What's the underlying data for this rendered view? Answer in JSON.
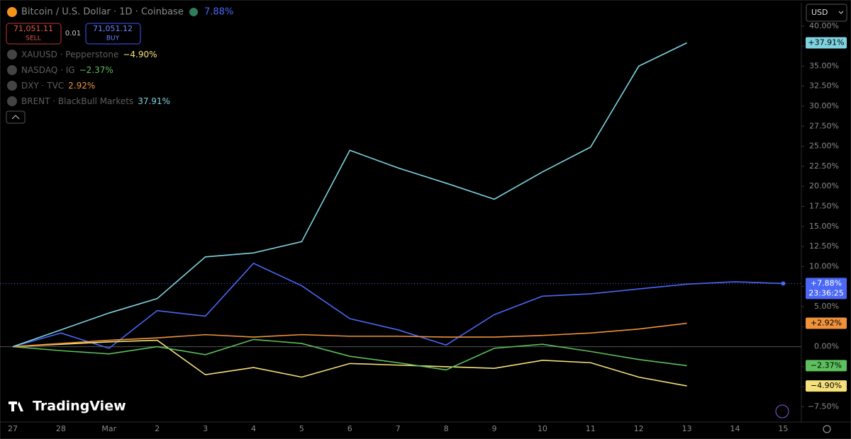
{
  "chart_data": {
    "type": "line",
    "sell_price": "71,051.11",
    "sell_label": "SELL",
    "spread": "0.01",
    "buy_price": "71,051.12",
    "buy_label": "BUY",
    "currency": "USD",
    "brand": "TradingView",
    "countdown": "23:36:25",
    "categories": [
      "27",
      "28",
      "Mar",
      "2",
      "3",
      "4",
      "5",
      "6",
      "7",
      "8",
      "9",
      "10",
      "11",
      "12",
      "13",
      "14",
      "15"
    ],
    "series": [
      {
        "name": "Bitcoin / U.S. Dollar · 1D · Coinbase",
        "color": "#4a67f5",
        "legend_change": "7.88%",
        "axis_badge": "+7.88%",
        "values": [
          0,
          1.7,
          -0.2,
          4.5,
          3.8,
          10.4,
          7.6,
          3.5,
          2.1,
          0.2,
          4.0,
          6.3,
          6.6,
          7.2,
          7.8,
          8.1,
          7.88
        ]
      },
      {
        "name": "XAUUSD · Pepperstone",
        "color": "#f5e17a",
        "legend_change": "−4.90%",
        "axis_badge": "−4.90%",
        "values": [
          0,
          0.3,
          0.6,
          0.8,
          -3.5,
          -2.6,
          -3.8,
          -2.1,
          -2.3,
          -2.5,
          -2.7,
          -1.7,
          -2.0,
          -3.8,
          -4.9,
          null,
          null
        ]
      },
      {
        "name": "NASDAQ · IG",
        "color": "#5cc05c",
        "legend_change": "−2.37%",
        "axis_badge": "−2.37%",
        "values": [
          0,
          -0.5,
          -0.9,
          0,
          -1.0,
          0.9,
          0.4,
          -1.2,
          -2.0,
          -2.9,
          -0.2,
          0.3,
          -0.6,
          -1.6,
          -2.37,
          null,
          null
        ]
      },
      {
        "name": "DXY · TVC",
        "color": "#f0923b",
        "legend_change": "2.92%",
        "axis_badge": "+2.92%",
        "values": [
          0,
          0.4,
          0.8,
          1.1,
          1.5,
          1.2,
          1.5,
          1.3,
          1.3,
          1.2,
          1.2,
          1.4,
          1.7,
          2.2,
          2.92,
          null,
          null
        ]
      },
      {
        "name": "BRENT · BlackBull Markets",
        "color": "#7fd3e0",
        "legend_change": "37.91%",
        "axis_badge": "+37.91%",
        "values": [
          0,
          2.1,
          4.2,
          6.0,
          11.2,
          11.7,
          13.1,
          24.5,
          22.3,
          20.4,
          18.4,
          21.8,
          24.9,
          35.0,
          37.91,
          null,
          null
        ]
      }
    ],
    "ylim": [
      -9.4,
      42.9
    ],
    "yticks": [
      {
        "value": -7.5,
        "label": "−7.50%"
      },
      {
        "value": -5,
        "label": "−5.00%"
      },
      {
        "value": -2.5,
        "label": "−2.50%"
      },
      {
        "value": 0,
        "label": "0.00%"
      },
      {
        "value": 2.5,
        "label": "2.50%"
      },
      {
        "value": 5,
        "label": "5.00%"
      },
      {
        "value": 7.5,
        "label": "7.50%"
      },
      {
        "value": 10,
        "label": "10.00%"
      },
      {
        "value": 12.5,
        "label": "12.50%"
      },
      {
        "value": 15,
        "label": "15.00%"
      },
      {
        "value": 17.5,
        "label": "17.50%"
      },
      {
        "value": 20,
        "label": "20.00%"
      },
      {
        "value": 22.5,
        "label": "22.50%"
      },
      {
        "value": 25,
        "label": "25.00%"
      },
      {
        "value": 27.5,
        "label": "27.50%"
      },
      {
        "value": 30,
        "label": "30.00%"
      },
      {
        "value": 32.5,
        "label": "32.50%"
      },
      {
        "value": 35,
        "label": "35.00%"
      },
      {
        "value": 37.5,
        "label": "37.50%"
      },
      {
        "value": 40,
        "label": "40.00%"
      }
    ]
  }
}
